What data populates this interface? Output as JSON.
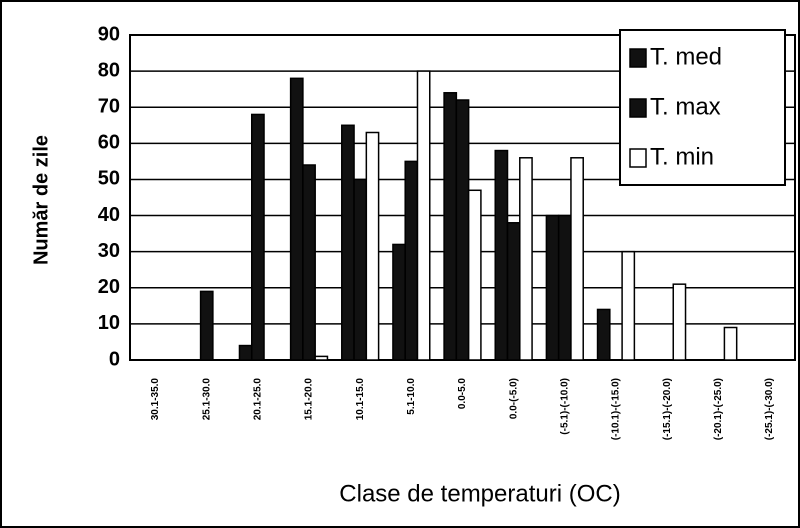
{
  "chart_data": {
    "type": "bar",
    "x_label": "Clase de temperaturi (OC)",
    "y_label": "Număr de zile",
    "categories": [
      "30.1-35.0",
      "25.1-30.0",
      "20.1-25.0",
      "15.1-20.0",
      "10.1-15.0",
      "5.1-10.0",
      "0.0-5.0",
      "0.0-(-5.0)",
      "(-5.1)-(-10.0)",
      "(-10.1)-(-15.0)",
      "(-15.1)-(-20.0)",
      "(-20.1)-(-25.0)",
      "(-25.1)-(-30.0)"
    ],
    "series": [
      {
        "name": "T. med",
        "color": "#111111",
        "values": [
          0,
          0,
          4,
          78,
          65,
          32,
          74,
          58,
          40,
          14,
          0,
          0,
          0
        ]
      },
      {
        "name": "T. max",
        "color": "#111111",
        "values": [
          0,
          19,
          68,
          54,
          50,
          55,
          72,
          38,
          40,
          0,
          0,
          0,
          0
        ]
      },
      {
        "name": "T. min",
        "color": "#ffffff",
        "values": [
          0,
          0,
          0,
          1,
          63,
          80,
          47,
          56,
          56,
          30,
          21,
          9,
          0
        ]
      }
    ],
    "ylim": [
      0,
      90
    ],
    "yticks": [
      0,
      10,
      20,
      30,
      40,
      50,
      60,
      70,
      80,
      90
    ],
    "grid": true,
    "legend": "top-right"
  }
}
